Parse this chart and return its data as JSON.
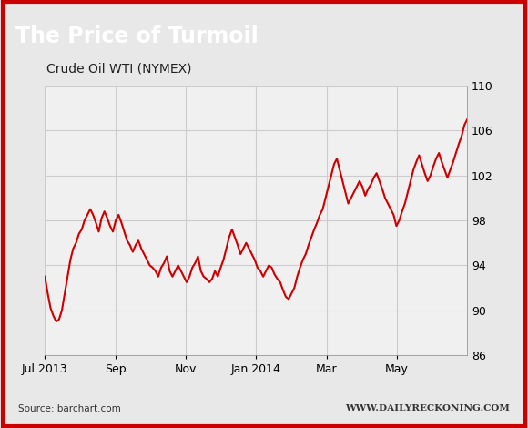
{
  "title": "The Price of Turmoil",
  "subtitle": "Crude Oil WTI (NYMEX)",
  "source_left": "Source: barchart.com",
  "source_right": "WWW.DAILYRECKONING.COM",
  "line_color": "#cc0000",
  "background_outer": "#e0e0e0",
  "background_inner": "#e8e8e8",
  "background_title": "#2a2a2a",
  "title_color": "#ffffff",
  "subtitle_color": "#222222",
  "plot_bg": "#f0f0f0",
  "grid_color": "#cccccc",
  "border_color": "#cc0000",
  "ylim": [
    86,
    110
  ],
  "yticks": [
    86,
    90,
    94,
    98,
    102,
    106,
    110
  ],
  "xtick_labels": [
    "Jul 2013",
    "Sep",
    "Nov",
    "Jan 2014",
    "Mar",
    "May"
  ],
  "prices": [
    93.0,
    91.5,
    90.2,
    89.5,
    89.0,
    89.2,
    90.0,
    91.5,
    93.0,
    94.5,
    95.5,
    96.0,
    96.8,
    97.2,
    98.0,
    98.5,
    99.0,
    98.5,
    97.8,
    97.0,
    98.2,
    98.8,
    98.2,
    97.5,
    97.0,
    98.0,
    98.5,
    97.8,
    97.0,
    96.2,
    95.8,
    95.2,
    95.8,
    96.2,
    95.5,
    95.0,
    94.5,
    94.0,
    93.8,
    93.5,
    93.0,
    93.8,
    94.2,
    94.8,
    93.5,
    93.0,
    93.5,
    94.0,
    93.5,
    93.0,
    92.5,
    93.0,
    93.8,
    94.2,
    94.8,
    93.5,
    93.0,
    92.8,
    92.5,
    92.8,
    93.5,
    93.0,
    93.8,
    94.5,
    95.5,
    96.5,
    97.2,
    96.5,
    95.8,
    95.0,
    95.5,
    96.0,
    95.5,
    95.0,
    94.5,
    93.8,
    93.5,
    93.0,
    93.5,
    94.0,
    93.8,
    93.2,
    92.8,
    92.5,
    91.8,
    91.2,
    91.0,
    91.5,
    92.0,
    93.0,
    93.8,
    94.5,
    95.0,
    95.8,
    96.5,
    97.2,
    97.8,
    98.5,
    99.0,
    100.0,
    101.0,
    102.0,
    103.0,
    103.5,
    102.5,
    101.5,
    100.5,
    99.5,
    100.0,
    100.5,
    101.0,
    101.5,
    101.0,
    100.2,
    100.8,
    101.2,
    101.8,
    102.2,
    101.5,
    100.8,
    100.0,
    99.5,
    99.0,
    98.5,
    97.5,
    98.0,
    98.8,
    99.5,
    100.5,
    101.5,
    102.5,
    103.2,
    103.8,
    103.0,
    102.2,
    101.5,
    102.0,
    102.8,
    103.5,
    104.0,
    103.2,
    102.5,
    101.8,
    102.5,
    103.2,
    104.0,
    104.8,
    105.5,
    106.5,
    107.0
  ]
}
